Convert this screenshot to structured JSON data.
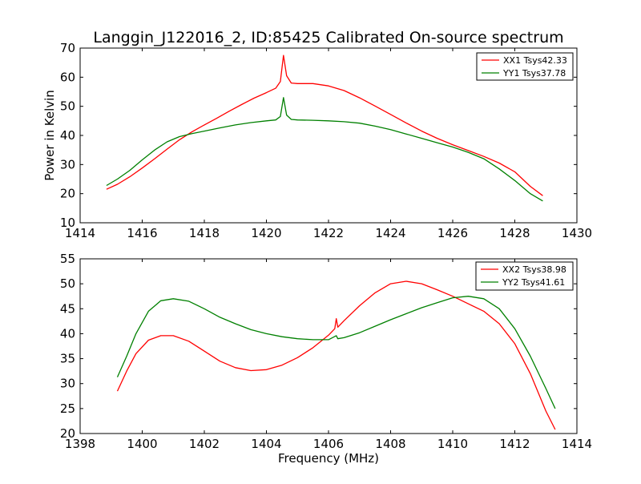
{
  "figure": {
    "title": "Langgin_J122016_2, ID:85425 Calibrated On-source spectrum",
    "xlabel": "Frequency (MHz)",
    "ylabel": "Power in Kelvin"
  },
  "colors": {
    "red": "#ff0000",
    "green": "#008000"
  },
  "chart_data": [
    {
      "type": "line",
      "title": "Langgin_J122016_2, ID:85425 Calibrated On-source spectrum",
      "ylabel": "Power in Kelvin",
      "xlabel": "",
      "xlim": [
        1414,
        1430
      ],
      "ylim": [
        10,
        70
      ],
      "xticks": [
        1414,
        1416,
        1418,
        1420,
        1422,
        1424,
        1426,
        1428,
        1430
      ],
      "yticks": [
        10,
        20,
        30,
        40,
        50,
        60,
        70
      ],
      "grid": false,
      "legend_position": "top-right",
      "series": [
        {
          "name": "XX1 Tsys42.33",
          "color": "#ff0000",
          "points": [
            [
              1414.85,
              21.5
            ],
            [
              1415.2,
              23.2
            ],
            [
              1415.6,
              25.8
            ],
            [
              1416.0,
              28.8
            ],
            [
              1416.4,
              32.0
            ],
            [
              1416.8,
              35.3
            ],
            [
              1417.2,
              38.5
            ],
            [
              1417.6,
              41.2
            ],
            [
              1418.0,
              43.6
            ],
            [
              1418.4,
              45.9
            ],
            [
              1418.8,
              48.3
            ],
            [
              1419.2,
              50.6
            ],
            [
              1419.6,
              52.8
            ],
            [
              1420.0,
              54.7
            ],
            [
              1420.3,
              56.2
            ],
            [
              1420.45,
              58.5
            ],
            [
              1420.55,
              67.5
            ],
            [
              1420.65,
              60.5
            ],
            [
              1420.8,
              58.0
            ],
            [
              1421.0,
              57.8
            ],
            [
              1421.5,
              57.8
            ],
            [
              1422.0,
              57.0
            ],
            [
              1422.5,
              55.4
            ],
            [
              1423.0,
              52.9
            ],
            [
              1423.5,
              50.1
            ],
            [
              1424.0,
              47.2
            ],
            [
              1424.5,
              44.3
            ],
            [
              1425.0,
              41.5
            ],
            [
              1425.5,
              39.0
            ],
            [
              1426.0,
              36.8
            ],
            [
              1426.5,
              34.8
            ],
            [
              1427.0,
              32.8
            ],
            [
              1427.5,
              30.5
            ],
            [
              1428.0,
              27.5
            ],
            [
              1428.5,
              22.5
            ],
            [
              1428.9,
              19.3
            ]
          ]
        },
        {
          "name": "YY1 Tsys37.78",
          "color": "#008000",
          "points": [
            [
              1414.85,
              22.8
            ],
            [
              1415.2,
              25.0
            ],
            [
              1415.6,
              28.0
            ],
            [
              1416.0,
              31.6
            ],
            [
              1416.4,
              35.0
            ],
            [
              1416.8,
              37.8
            ],
            [
              1417.2,
              39.6
            ],
            [
              1417.6,
              40.6
            ],
            [
              1418.0,
              41.5
            ],
            [
              1418.5,
              42.6
            ],
            [
              1419.0,
              43.6
            ],
            [
              1419.5,
              44.4
            ],
            [
              1420.0,
              45.0
            ],
            [
              1420.3,
              45.3
            ],
            [
              1420.45,
              46.5
            ],
            [
              1420.55,
              53.0
            ],
            [
              1420.65,
              47.0
            ],
            [
              1420.8,
              45.5
            ],
            [
              1421.0,
              45.3
            ],
            [
              1421.5,
              45.2
            ],
            [
              1422.0,
              45.0
            ],
            [
              1422.5,
              44.7
            ],
            [
              1423.0,
              44.2
            ],
            [
              1423.5,
              43.2
            ],
            [
              1424.0,
              42.0
            ],
            [
              1424.5,
              40.5
            ],
            [
              1425.0,
              39.0
            ],
            [
              1425.5,
              37.5
            ],
            [
              1426.0,
              36.0
            ],
            [
              1426.5,
              34.2
            ],
            [
              1427.0,
              32.0
            ],
            [
              1427.5,
              28.5
            ],
            [
              1428.0,
              24.5
            ],
            [
              1428.5,
              20.0
            ],
            [
              1428.9,
              17.5
            ]
          ]
        }
      ]
    },
    {
      "type": "line",
      "title": "",
      "xlabel": "Frequency (MHz)",
      "ylabel": "",
      "xlim": [
        1398,
        1414
      ],
      "ylim": [
        20,
        55
      ],
      "xticks": [
        1398,
        1400,
        1402,
        1404,
        1406,
        1408,
        1410,
        1412,
        1414
      ],
      "yticks": [
        20,
        25,
        30,
        35,
        40,
        45,
        50,
        55
      ],
      "grid": false,
      "legend_position": "top-right",
      "series": [
        {
          "name": "XX2 Tsys38.98",
          "color": "#ff0000",
          "points": [
            [
              1399.2,
              28.5
            ],
            [
              1399.5,
              32.5
            ],
            [
              1399.8,
              36.0
            ],
            [
              1400.2,
              38.7
            ],
            [
              1400.6,
              39.6
            ],
            [
              1401.0,
              39.6
            ],
            [
              1401.5,
              38.5
            ],
            [
              1402.0,
              36.5
            ],
            [
              1402.5,
              34.5
            ],
            [
              1403.0,
              33.2
            ],
            [
              1403.5,
              32.6
            ],
            [
              1404.0,
              32.8
            ],
            [
              1404.5,
              33.7
            ],
            [
              1405.0,
              35.2
            ],
            [
              1405.5,
              37.2
            ],
            [
              1406.0,
              39.7
            ],
            [
              1406.2,
              41.0
            ],
            [
              1406.25,
              43.0
            ],
            [
              1406.3,
              41.3
            ],
            [
              1406.5,
              42.6
            ],
            [
              1407.0,
              45.6
            ],
            [
              1407.5,
              48.2
            ],
            [
              1408.0,
              50.0
            ],
            [
              1408.5,
              50.5
            ],
            [
              1409.0,
              50.0
            ],
            [
              1409.5,
              48.8
            ],
            [
              1410.0,
              47.5
            ],
            [
              1410.5,
              46.0
            ],
            [
              1411.0,
              44.5
            ],
            [
              1411.5,
              42.0
            ],
            [
              1412.0,
              38.0
            ],
            [
              1412.5,
              32.0
            ],
            [
              1413.0,
              24.5
            ],
            [
              1413.3,
              20.8
            ]
          ]
        },
        {
          "name": "YY2 Tsys41.61",
          "color": "#008000",
          "points": [
            [
              1399.2,
              31.3
            ],
            [
              1399.5,
              35.5
            ],
            [
              1399.8,
              40.0
            ],
            [
              1400.2,
              44.5
            ],
            [
              1400.6,
              46.6
            ],
            [
              1401.0,
              47.0
            ],
            [
              1401.5,
              46.5
            ],
            [
              1402.0,
              45.0
            ],
            [
              1402.5,
              43.3
            ],
            [
              1403.0,
              42.0
            ],
            [
              1403.5,
              40.8
            ],
            [
              1404.0,
              40.0
            ],
            [
              1404.5,
              39.4
            ],
            [
              1405.0,
              39.0
            ],
            [
              1405.5,
              38.8
            ],
            [
              1406.0,
              38.8
            ],
            [
              1406.25,
              39.6
            ],
            [
              1406.3,
              39.0
            ],
            [
              1406.5,
              39.2
            ],
            [
              1407.0,
              40.2
            ],
            [
              1407.5,
              41.5
            ],
            [
              1408.0,
              42.8
            ],
            [
              1408.5,
              44.0
            ],
            [
              1409.0,
              45.2
            ],
            [
              1409.5,
              46.2
            ],
            [
              1410.0,
              47.2
            ],
            [
              1410.5,
              47.5
            ],
            [
              1411.0,
              47.0
            ],
            [
              1411.5,
              45.0
            ],
            [
              1412.0,
              41.0
            ],
            [
              1412.5,
              35.5
            ],
            [
              1413.0,
              29.0
            ],
            [
              1413.3,
              25.0
            ]
          ]
        }
      ]
    }
  ]
}
